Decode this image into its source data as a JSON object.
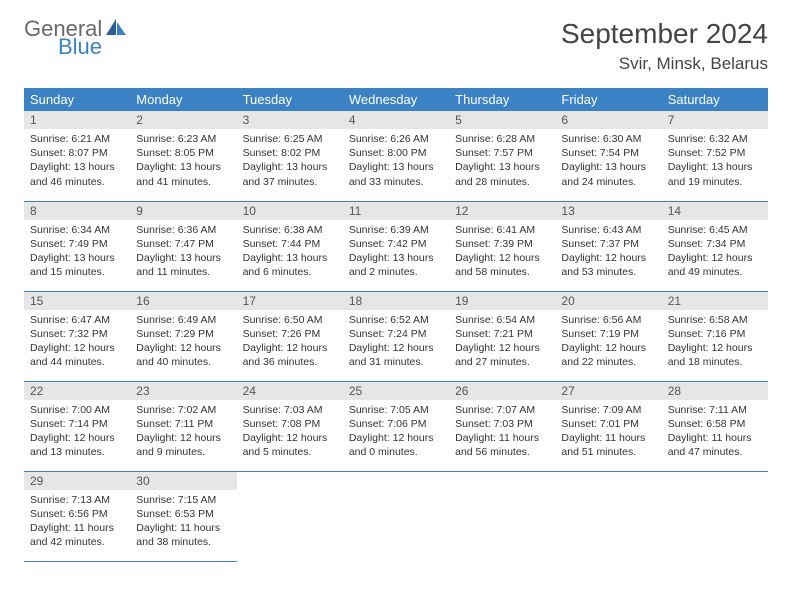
{
  "logo": {
    "text_general": "General",
    "text_blue": "Blue"
  },
  "title": "September 2024",
  "location": "Svir, Minsk, Belarus",
  "colors": {
    "header_bg": "#3b82c4",
    "header_text": "#ffffff",
    "daynum_bg": "#e6e6e6",
    "row_border": "#3b82c4",
    "logo_gray": "#6a6a6a",
    "logo_blue": "#3b82c4"
  },
  "weekdays": [
    "Sunday",
    "Monday",
    "Tuesday",
    "Wednesday",
    "Thursday",
    "Friday",
    "Saturday"
  ],
  "weeks": [
    [
      {
        "n": "1",
        "sunrise": "6:21 AM",
        "sunset": "8:07 PM",
        "daylight": "13 hours and 46 minutes."
      },
      {
        "n": "2",
        "sunrise": "6:23 AM",
        "sunset": "8:05 PM",
        "daylight": "13 hours and 41 minutes."
      },
      {
        "n": "3",
        "sunrise": "6:25 AM",
        "sunset": "8:02 PM",
        "daylight": "13 hours and 37 minutes."
      },
      {
        "n": "4",
        "sunrise": "6:26 AM",
        "sunset": "8:00 PM",
        "daylight": "13 hours and 33 minutes."
      },
      {
        "n": "5",
        "sunrise": "6:28 AM",
        "sunset": "7:57 PM",
        "daylight": "13 hours and 28 minutes."
      },
      {
        "n": "6",
        "sunrise": "6:30 AM",
        "sunset": "7:54 PM",
        "daylight": "13 hours and 24 minutes."
      },
      {
        "n": "7",
        "sunrise": "6:32 AM",
        "sunset": "7:52 PM",
        "daylight": "13 hours and 19 minutes."
      }
    ],
    [
      {
        "n": "8",
        "sunrise": "6:34 AM",
        "sunset": "7:49 PM",
        "daylight": "13 hours and 15 minutes."
      },
      {
        "n": "9",
        "sunrise": "6:36 AM",
        "sunset": "7:47 PM",
        "daylight": "13 hours and 11 minutes."
      },
      {
        "n": "10",
        "sunrise": "6:38 AM",
        "sunset": "7:44 PM",
        "daylight": "13 hours and 6 minutes."
      },
      {
        "n": "11",
        "sunrise": "6:39 AM",
        "sunset": "7:42 PM",
        "daylight": "13 hours and 2 minutes."
      },
      {
        "n": "12",
        "sunrise": "6:41 AM",
        "sunset": "7:39 PM",
        "daylight": "12 hours and 58 minutes."
      },
      {
        "n": "13",
        "sunrise": "6:43 AM",
        "sunset": "7:37 PM",
        "daylight": "12 hours and 53 minutes."
      },
      {
        "n": "14",
        "sunrise": "6:45 AM",
        "sunset": "7:34 PM",
        "daylight": "12 hours and 49 minutes."
      }
    ],
    [
      {
        "n": "15",
        "sunrise": "6:47 AM",
        "sunset": "7:32 PM",
        "daylight": "12 hours and 44 minutes."
      },
      {
        "n": "16",
        "sunrise": "6:49 AM",
        "sunset": "7:29 PM",
        "daylight": "12 hours and 40 minutes."
      },
      {
        "n": "17",
        "sunrise": "6:50 AM",
        "sunset": "7:26 PM",
        "daylight": "12 hours and 36 minutes."
      },
      {
        "n": "18",
        "sunrise": "6:52 AM",
        "sunset": "7:24 PM",
        "daylight": "12 hours and 31 minutes."
      },
      {
        "n": "19",
        "sunrise": "6:54 AM",
        "sunset": "7:21 PM",
        "daylight": "12 hours and 27 minutes."
      },
      {
        "n": "20",
        "sunrise": "6:56 AM",
        "sunset": "7:19 PM",
        "daylight": "12 hours and 22 minutes."
      },
      {
        "n": "21",
        "sunrise": "6:58 AM",
        "sunset": "7:16 PM",
        "daylight": "12 hours and 18 minutes."
      }
    ],
    [
      {
        "n": "22",
        "sunrise": "7:00 AM",
        "sunset": "7:14 PM",
        "daylight": "12 hours and 13 minutes."
      },
      {
        "n": "23",
        "sunrise": "7:02 AM",
        "sunset": "7:11 PM",
        "daylight": "12 hours and 9 minutes."
      },
      {
        "n": "24",
        "sunrise": "7:03 AM",
        "sunset": "7:08 PM",
        "daylight": "12 hours and 5 minutes."
      },
      {
        "n": "25",
        "sunrise": "7:05 AM",
        "sunset": "7:06 PM",
        "daylight": "12 hours and 0 minutes."
      },
      {
        "n": "26",
        "sunrise": "7:07 AM",
        "sunset": "7:03 PM",
        "daylight": "11 hours and 56 minutes."
      },
      {
        "n": "27",
        "sunrise": "7:09 AM",
        "sunset": "7:01 PM",
        "daylight": "11 hours and 51 minutes."
      },
      {
        "n": "28",
        "sunrise": "7:11 AM",
        "sunset": "6:58 PM",
        "daylight": "11 hours and 47 minutes."
      }
    ],
    [
      {
        "n": "29",
        "sunrise": "7:13 AM",
        "sunset": "6:56 PM",
        "daylight": "11 hours and 42 minutes."
      },
      {
        "n": "30",
        "sunrise": "7:15 AM",
        "sunset": "6:53 PM",
        "daylight": "11 hours and 38 minutes."
      },
      null,
      null,
      null,
      null,
      null
    ]
  ]
}
